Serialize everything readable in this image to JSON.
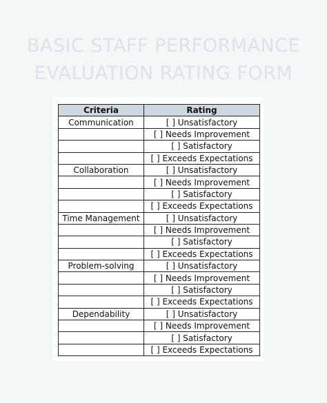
{
  "title": {
    "line1": "BASIC STAFF PERFORMANCE",
    "line2": "EVALUATION RATING FORM"
  },
  "table": {
    "headers": [
      "Criteria",
      "Rating"
    ],
    "rows": [
      [
        "Communication",
        "[  ] Unsatisfactory"
      ],
      [
        "",
        "[  ] Needs Improvement"
      ],
      [
        "",
        "[  ] Satisfactory"
      ],
      [
        "",
        "[  ] Exceeds Expectations"
      ],
      [
        "Collaboration",
        "[  ] Unsatisfactory"
      ],
      [
        "",
        "[  ] Needs Improvement"
      ],
      [
        "",
        "[  ] Satisfactory"
      ],
      [
        "",
        "[  ] Exceeds Expectations"
      ],
      [
        "Time Management",
        "[  ] Unsatisfactory"
      ],
      [
        "",
        "[  ] Needs Improvement"
      ],
      [
        "",
        "[  ] Satisfactory"
      ],
      [
        "",
        "[  ] Exceeds Expectations"
      ],
      [
        "Problem-solving",
        "[  ] Unsatisfactory"
      ],
      [
        "",
        "[  ] Needs Improvement"
      ],
      [
        "",
        "[  ] Satisfactory"
      ],
      [
        "",
        "[  ] Exceeds Expectations"
      ],
      [
        "Dependability",
        "[  ] Unsatisfactory"
      ],
      [
        "",
        "[  ] Needs Improvement"
      ],
      [
        "",
        "[  ] Satisfactory"
      ],
      [
        "",
        "[  ] Exceeds Expectations"
      ]
    ]
  }
}
